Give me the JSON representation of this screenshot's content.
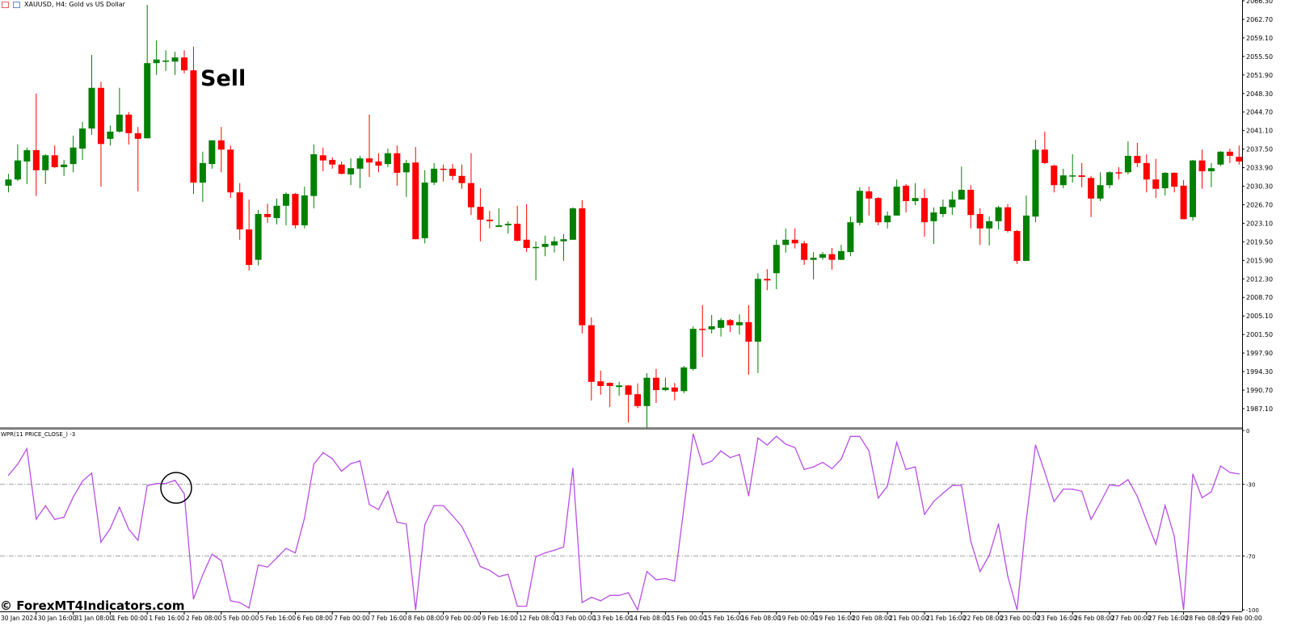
{
  "header": {
    "title": "XAUUSD, H4:  Gold vs US Dollar",
    "icons": [
      "one-click-trading-icon",
      "chart-shift-icon"
    ]
  },
  "annotations": {
    "sell_label": "Sell",
    "watermark": "© ForexMT4Indicators.com",
    "circle_marker_on": "WPR"
  },
  "indicator": {
    "label": "WPR(11 PRICE_CLOSE_) -3"
  },
  "colors": {
    "bull": "#008000",
    "bear": "#ff0000",
    "wpr_line": "#b94ee6",
    "levels": "#a0a0a0"
  },
  "chart_data": [
    {
      "type": "candlestick",
      "title": "XAUUSD, H4:  Gold vs US Dollar",
      "timeframe": "H4",
      "ohlc_format": [
        "open",
        "high",
        "low",
        "close"
      ],
      "ylim": [
        1984.0,
        2066.3
      ],
      "y_ticks": [
        "2066.30",
        "2062.70",
        "2059.10",
        "2055.50",
        "2051.90",
        "2048.30",
        "2044.70",
        "2041.10",
        "2037.50",
        "2033.90",
        "2030.30",
        "2026.70",
        "2023.10",
        "2019.50",
        "2015.90",
        "2012.30",
        "2008.70",
        "2005.10",
        "2001.50",
        "1997.90",
        "1994.30",
        "1990.70",
        "1987.10"
      ],
      "x_ticks": [
        "30 Jan 2024",
        "30 Jan 16:00",
        "31 Jan 08:00",
        "1 Feb 00:00",
        "1 Feb 16:00",
        "2 Feb 08:00",
        "5 Feb 00:00",
        "5 Feb 16:00",
        "6 Feb 08:00",
        "7 Feb 00:00",
        "7 Feb 16:00",
        "8 Feb 08:00",
        "9 Feb 00:00",
        "9 Feb 16:00",
        "12 Feb 08:00",
        "13 Feb 00:00",
        "13 Feb 16:00",
        "14 Feb 08:00",
        "15 Feb 00:00",
        "15 Feb 16:00",
        "16 Feb 08:00",
        "19 Feb 00:00",
        "19 Feb 16:00",
        "20 Feb 08:00",
        "21 Feb 00:00",
        "21 Feb 16:00",
        "22 Feb 08:00",
        "23 Feb 00:00",
        "23 Feb 16:00",
        "26 Feb 08:00",
        "27 Feb 00:00",
        "27 Feb 16:00",
        "28 Feb 08:00",
        "29 Feb 00:00"
      ],
      "candles": [
        [
          2030.4,
          2032.7,
          2029.1,
          2031.6
        ],
        [
          2031.6,
          2038.4,
          2031.3,
          2035.3
        ],
        [
          2035.1,
          2037.8,
          2030.7,
          2037.3
        ],
        [
          2037.3,
          2048.3,
          2028.4,
          2033.4
        ],
        [
          2033.4,
          2036.5,
          2030.7,
          2036.3
        ],
        [
          2036.3,
          2038.2,
          2033.8,
          2034.0
        ],
        [
          2034.0,
          2035.4,
          2032.3,
          2034.5
        ],
        [
          2034.6,
          2040.1,
          2033.0,
          2037.8
        ],
        [
          2037.6,
          2042.8,
          2035.4,
          2041.5
        ],
        [
          2041.5,
          2055.8,
          2040.3,
          2049.4
        ],
        [
          2049.4,
          2050.6,
          2030.2,
          2038.5
        ],
        [
          2039.5,
          2042.1,
          2038.2,
          2040.9
        ],
        [
          2040.9,
          2049.4,
          2040.7,
          2044.2
        ],
        [
          2044.2,
          2044.7,
          2038.4,
          2040.6
        ],
        [
          2040.6,
          2041.8,
          2029.3,
          2039.5
        ],
        [
          2039.6,
          2065.5,
          2039.6,
          2054.2
        ],
        [
          2054.2,
          2058.6,
          2051.9,
          2054.9
        ],
        [
          2054.5,
          2056.7,
          2052.7,
          2054.7
        ],
        [
          2054.5,
          2056.4,
          2051.9,
          2055.3
        ],
        [
          2055.3,
          2056.7,
          2052.2,
          2052.8
        ],
        [
          2052.8,
          2057.4,
          2028.8,
          2031.0
        ],
        [
          2031.0,
          2037.0,
          2027.2,
          2034.8
        ],
        [
          2034.6,
          2039.2,
          2033.7,
          2039.2
        ],
        [
          2039.2,
          2041.8,
          2033.0,
          2037.4
        ],
        [
          2037.4,
          2038.2,
          2028.0,
          2029.1
        ],
        [
          2029.1,
          2030.9,
          2019.9,
          2021.9
        ],
        [
          2021.9,
          2027.7,
          2013.9,
          2015.0
        ],
        [
          2016.0,
          2025.7,
          2014.9,
          2024.9
        ],
        [
          2024.9,
          2026.9,
          2023.2,
          2024.3
        ],
        [
          2024.1,
          2027.9,
          2022.9,
          2026.5
        ],
        [
          2026.5,
          2029.1,
          2022.7,
          2028.8
        ],
        [
          2028.8,
          2029.0,
          2022.1,
          2022.7
        ],
        [
          2022.7,
          2030.2,
          2022.1,
          2028.5
        ],
        [
          2028.4,
          2038.4,
          2026.0,
          2036.5
        ],
        [
          2036.3,
          2037.8,
          2033.2,
          2035.3
        ],
        [
          2035.4,
          2035.9,
          2033.7,
          2034.5
        ],
        [
          2034.5,
          2035.1,
          2032.6,
          2032.7
        ],
        [
          2032.6,
          2035.7,
          2030.5,
          2033.8
        ],
        [
          2033.7,
          2036.2,
          2029.9,
          2035.7
        ],
        [
          2035.7,
          2044.2,
          2032.1,
          2034.9
        ],
        [
          2035.1,
          2036.7,
          2033.0,
          2034.3
        ],
        [
          2034.6,
          2037.6,
          2034.0,
          2036.7
        ],
        [
          2036.7,
          2038.2,
          2030.4,
          2032.9
        ],
        [
          2033.0,
          2035.4,
          2028.2,
          2034.8
        ],
        [
          2034.9,
          2037.9,
          2020.0,
          2020.0
        ],
        [
          2020.2,
          2033.4,
          2019.2,
          2031.0
        ],
        [
          2031.0,
          2034.8,
          2030.5,
          2033.7
        ],
        [
          2033.7,
          2034.5,
          2031.2,
          2033.5
        ],
        [
          2033.7,
          2034.6,
          2031.5,
          2032.3
        ],
        [
          2032.3,
          2034.5,
          2029.8,
          2030.9
        ],
        [
          2030.9,
          2036.7,
          2024.7,
          2026.2
        ],
        [
          2026.3,
          2029.9,
          2019.6,
          2023.8
        ],
        [
          2023.8,
          2025.5,
          2022.1,
          2023.5
        ],
        [
          2022.4,
          2026.0,
          2022.4,
          2022.7
        ],
        [
          2022.7,
          2023.5,
          2021.1,
          2023.0
        ],
        [
          2023.0,
          2026.5,
          2019.6,
          2019.7
        ],
        [
          2019.9,
          2026.8,
          2017.5,
          2018.3
        ],
        [
          2018.3,
          2019.6,
          2012.0,
          2018.5
        ],
        [
          2018.5,
          2020.7,
          2016.7,
          2019.1
        ],
        [
          2018.8,
          2020.5,
          2017.4,
          2019.6
        ],
        [
          2019.6,
          2021.0,
          2015.8,
          2020.0
        ],
        [
          2019.9,
          2026.2,
          2019.9,
          2026.0
        ],
        [
          2026.0,
          2027.6,
          2001.7,
          2003.3
        ],
        [
          2003.3,
          2004.8,
          1988.7,
          1992.3
        ],
        [
          1992.4,
          1994.5,
          1989.8,
          1991.5
        ],
        [
          1992.1,
          1992.2,
          1987.4,
          1991.5
        ],
        [
          1991.3,
          1992.3,
          1989.6,
          1991.6
        ],
        [
          1991.6,
          1991.7,
          1984.4,
          1989.8
        ],
        [
          1989.9,
          1992.0,
          1987.2,
          1987.6
        ],
        [
          1987.6,
          1994.0,
          1983.3,
          1993.1
        ],
        [
          1993.1,
          1994.8,
          1988.2,
          1990.7
        ],
        [
          1990.7,
          1993.1,
          1990.5,
          1991.2
        ],
        [
          1991.2,
          1992.1,
          1988.7,
          1990.4
        ],
        [
          1990.5,
          1995.4,
          1990.1,
          1995.1
        ],
        [
          1994.8,
          2003.1,
          1994.5,
          2002.6
        ],
        [
          2002.6,
          2007.2,
          1997.1,
          2002.5
        ],
        [
          2002.5,
          2005.3,
          2001.7,
          2003.1
        ],
        [
          2002.8,
          2004.7,
          2001.1,
          2004.3
        ],
        [
          2004.3,
          2004.5,
          2002.0,
          2003.3
        ],
        [
          2003.3,
          2005.4,
          2001.5,
          2003.9
        ],
        [
          2003.9,
          2007.2,
          1993.7,
          2000.1
        ],
        [
          2000.1,
          2013.4,
          1994.0,
          2012.3
        ],
        [
          2012.3,
          2014.2,
          2010.1,
          2012.0
        ],
        [
          2013.4,
          2019.9,
          2010.3,
          2018.9
        ],
        [
          2018.9,
          2022.1,
          2017.4,
          2019.9
        ],
        [
          2019.9,
          2022.1,
          2018.2,
          2019.2
        ],
        [
          2019.2,
          2019.7,
          2015.0,
          2016.0
        ],
        [
          2016.0,
          2017.5,
          2012.2,
          2016.4
        ],
        [
          2016.4,
          2017.5,
          2016.0,
          2017.1
        ],
        [
          2017.1,
          2018.3,
          2014.1,
          2016.0
        ],
        [
          2016.0,
          2018.9,
          2016.0,
          2017.7
        ],
        [
          2017.5,
          2024.4,
          2016.7,
          2023.3
        ],
        [
          2023.2,
          2030.1,
          2022.7,
          2029.4
        ],
        [
          2029.3,
          2030.2,
          2024.6,
          2027.9
        ],
        [
          2028.0,
          2028.2,
          2022.7,
          2023.3
        ],
        [
          2023.3,
          2025.4,
          2022.1,
          2024.6
        ],
        [
          2024.6,
          2031.6,
          2024.6,
          2030.2
        ],
        [
          2030.4,
          2030.7,
          2025.2,
          2027.4
        ],
        [
          2027.4,
          2030.9,
          2026.6,
          2028.0
        ],
        [
          2028.0,
          2029.8,
          2020.5,
          2023.3
        ],
        [
          2023.5,
          2026.2,
          2019.1,
          2025.2
        ],
        [
          2024.9,
          2027.7,
          2024.3,
          2026.3
        ],
        [
          2026.2,
          2029.3,
          2024.7,
          2027.7
        ],
        [
          2027.7,
          2034.1,
          2027.7,
          2029.6
        ],
        [
          2029.6,
          2030.5,
          2022.1,
          2024.7
        ],
        [
          2024.9,
          2026.0,
          2018.9,
          2022.1
        ],
        [
          2022.1,
          2024.4,
          2018.8,
          2023.5
        ],
        [
          2023.5,
          2026.5,
          2021.9,
          2026.2
        ],
        [
          2026.2,
          2026.8,
          2021.3,
          2021.6
        ],
        [
          2021.6,
          2021.8,
          2015.2,
          2015.8
        ],
        [
          2015.8,
          2028.5,
          2015.8,
          2024.6
        ],
        [
          2024.4,
          2039.3,
          2023.3,
          2037.4
        ],
        [
          2037.4,
          2040.9,
          2034.6,
          2034.8
        ],
        [
          2034.3,
          2034.5,
          2029.1,
          2030.5
        ],
        [
          2030.5,
          2033.7,
          2029.9,
          2032.4
        ],
        [
          2032.3,
          2036.5,
          2031.0,
          2032.4
        ],
        [
          2032.4,
          2034.8,
          2030.1,
          2032.1
        ],
        [
          2031.9,
          2032.3,
          2024.3,
          2027.9
        ],
        [
          2027.9,
          2033.0,
          2027.4,
          2030.5
        ],
        [
          2030.5,
          2033.2,
          2029.9,
          2033.0
        ],
        [
          2033.0,
          2034.0,
          2031.6,
          2032.9
        ],
        [
          2033.0,
          2039.0,
          2032.6,
          2036.2
        ],
        [
          2036.2,
          2038.7,
          2034.0,
          2034.8
        ],
        [
          2034.8,
          2036.5,
          2029.1,
          2031.6
        ],
        [
          2031.6,
          2035.6,
          2028.0,
          2029.8
        ],
        [
          2029.9,
          2033.0,
          2028.5,
          2032.9
        ],
        [
          2032.9,
          2033.0,
          2029.1,
          2030.2
        ],
        [
          2030.4,
          2031.5,
          2023.9,
          2023.9
        ],
        [
          2024.3,
          2035.4,
          2023.6,
          2035.3
        ],
        [
          2035.3,
          2037.4,
          2029.8,
          2033.2
        ],
        [
          2033.2,
          2034.8,
          2030.1,
          2033.8
        ],
        [
          2034.5,
          2037.1,
          2034.2,
          2037.0
        ],
        [
          2037.0,
          2037.6,
          2034.8,
          2036.2
        ],
        [
          2036.0,
          2038.2,
          2034.5,
          2035.1
        ]
      ]
    },
    {
      "type": "line",
      "title": "WPR(11 PRICE_CLOSE_) -3",
      "ylim": [
        -100,
        0
      ],
      "y_ticks": [
        "0",
        "-30",
        "-70",
        "-100"
      ],
      "levels": [
        -30,
        -70
      ],
      "values": [
        -25.0,
        -18.8,
        -10.2,
        -49.4,
        -42.0,
        -49.6,
        -48.4,
        -37.2,
        -28.3,
        -23.8,
        -62.3,
        -54.7,
        -42.8,
        -55.1,
        -61.3,
        -30.7,
        -29.6,
        -29.6,
        -27.8,
        -35.3,
        -94.0,
        -80.5,
        -69.0,
        -72.6,
        -95.0,
        -96.0,
        -99.0,
        -75.0,
        -76.2,
        -71.1,
        -65.8,
        -68.3,
        -48.9,
        -18.8,
        -12.4,
        -15.7,
        -22.7,
        -18.5,
        -17.0,
        -41.3,
        -44.1,
        -33.9,
        -51.1,
        -52.2,
        -100.0,
        -52.5,
        -41.9,
        -41.9,
        -47.5,
        -53.5,
        -64.0,
        -75.9,
        -78.0,
        -81.5,
        -80.2,
        -98.0,
        -98.0,
        -70.4,
        -68.3,
        -66.8,
        -65.0,
        -21.0,
        -96.0,
        -93.0,
        -95.0,
        -92.0,
        -92.0,
        -90.5,
        -100.0,
        -78.7,
        -83.3,
        -82.6,
        -84.0,
        -43.0,
        -1.9,
        -19.1,
        -17.1,
        -11.4,
        -15.2,
        -13.4,
        -36.5,
        -4.2,
        -8.1,
        -3.3,
        -7.6,
        -9.5,
        -21.7,
        -20.3,
        -17.8,
        -21.3,
        -16.0,
        -3.3,
        -3.3,
        -11.4,
        -37.7,
        -31.0,
        -6.6,
        -21.7,
        -20.3,
        -46.8,
        -39.6,
        -35.0,
        -30.7,
        -30.6,
        -61.8,
        -78.7,
        -69.7,
        -52.1,
        -81.2,
        -100.0,
        -50.0,
        -8.1,
        -23.1,
        -39.7,
        -32.7,
        -32.7,
        -33.9,
        -49.6,
        -40.3,
        -30.3,
        -31.0,
        -27.4,
        -36.7,
        -50.4,
        -63.5,
        -41.8,
        -59.0,
        -100.0,
        -24.3,
        -37.5,
        -34.2,
        -19.8,
        -23.4,
        -24.3
      ]
    }
  ]
}
